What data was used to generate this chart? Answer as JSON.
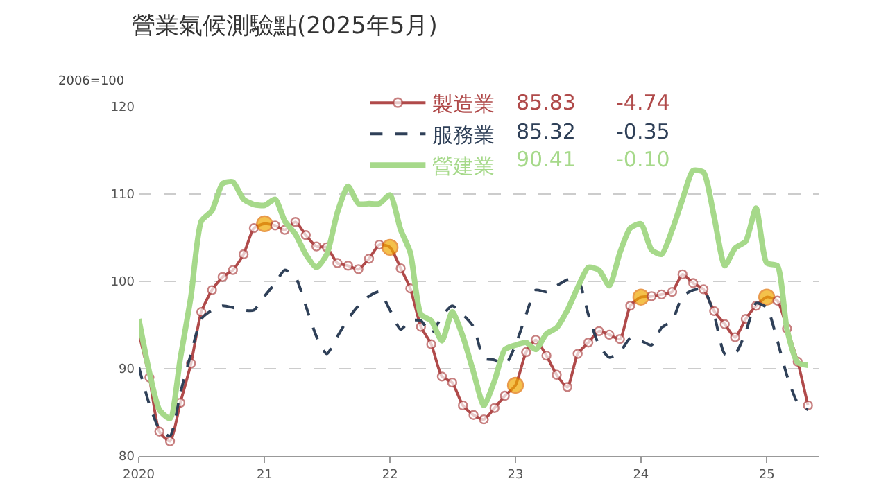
{
  "chart_data": {
    "type": "line",
    "title": "營業氣候測驗點(2025年5月)",
    "ylabel": "2006=100",
    "x": [
      "2020-01",
      "2020-02",
      "2020-03",
      "2020-04",
      "2020-05",
      "2020-06",
      "2020-07",
      "2020-08",
      "2020-09",
      "2020-10",
      "2020-11",
      "2020-12",
      "2021-01",
      "2021-02",
      "2021-03",
      "2021-04",
      "2021-05",
      "2021-06",
      "2021-07",
      "2021-08",
      "2021-09",
      "2021-10",
      "2021-11",
      "2021-12",
      "2022-01",
      "2022-02",
      "2022-03",
      "2022-04",
      "2022-05",
      "2022-06",
      "2022-07",
      "2022-08",
      "2022-09",
      "2022-10",
      "2022-11",
      "2022-12",
      "2023-01",
      "2023-02",
      "2023-03",
      "2023-04",
      "2023-05",
      "2023-06",
      "2023-07",
      "2023-08",
      "2023-09",
      "2023-10",
      "2023-11",
      "2023-12",
      "2024-01",
      "2024-02",
      "2024-03",
      "2024-04",
      "2024-05",
      "2024-06",
      "2024-07",
      "2024-08",
      "2024-09",
      "2024-10",
      "2024-11",
      "2024-12",
      "2025-01",
      "2025-02",
      "2025-03",
      "2025-04",
      "2025-05"
    ],
    "series": [
      {
        "name": "製造業",
        "color": "#b04a4a",
        "marker": "circle",
        "line_style": "solid",
        "values": [
          94.1,
          89.0,
          82.8,
          81.7,
          86.1,
          90.6,
          96.5,
          99.0,
          100.5,
          101.3,
          103.1,
          106.1,
          106.6,
          106.4,
          105.9,
          106.8,
          105.3,
          104.0,
          103.9,
          102.1,
          101.8,
          101.4,
          102.6,
          104.2,
          103.9,
          101.5,
          99.2,
          94.8,
          92.8,
          89.1,
          88.4,
          85.8,
          84.7,
          84.2,
          85.5,
          86.9,
          88.1,
          91.9,
          93.3,
          91.5,
          89.3,
          87.9,
          91.7,
          93.0,
          94.3,
          93.9,
          93.4,
          97.2,
          98.2,
          98.3,
          98.5,
          98.8,
          100.8,
          99.8,
          99.1,
          96.6,
          95.1,
          93.6,
          95.7,
          97.2,
          98.2,
          97.8,
          94.6,
          90.8,
          85.8
        ],
        "colors": [
          null,
          null,
          null,
          null,
          null,
          null,
          null,
          null,
          null,
          null,
          null,
          null,
          "#f0a800",
          null,
          null,
          null,
          null,
          null,
          null,
          null,
          null,
          null,
          null,
          null,
          "#f0a800",
          null,
          null,
          null,
          null,
          null,
          null,
          null,
          null,
          null,
          null,
          null,
          "#f0a800",
          null,
          null,
          null,
          null,
          null,
          null,
          null,
          null,
          null,
          null,
          null,
          "#f0a800",
          null,
          null,
          null,
          null,
          null,
          null,
          null,
          null,
          null,
          null,
          null,
          "#f0a800",
          null,
          null,
          null,
          null
        ]
      },
      {
        "name": "服務業",
        "color": "#2f4058",
        "marker": "none",
        "line_style": "dashed",
        "values": [
          90.2,
          85.9,
          83.1,
          82.3,
          87.2,
          91.7,
          95.7,
          96.7,
          97.2,
          97.0,
          96.7,
          96.7,
          98.3,
          99.8,
          101.3,
          100.5,
          97.2,
          93.7,
          91.7,
          93.7,
          95.7,
          97.2,
          98.3,
          98.8,
          96.7,
          94.5,
          95.5,
          95.5,
          94.0,
          96.0,
          97.2,
          96.2,
          94.8,
          91.2,
          91.0,
          90.4,
          92.7,
          96.2,
          99.0,
          98.8,
          99.5,
          100.2,
          100.3,
          96.2,
          92.7,
          91.3,
          91.9,
          93.5,
          93.2,
          92.7,
          94.7,
          95.5,
          98.3,
          99.0,
          99.1,
          96.2,
          91.7,
          91.7,
          94.2,
          97.5,
          97.0,
          93.2,
          89.2,
          86.1,
          85.3
        ]
      },
      {
        "name": "營建業",
        "color": "#a6d98a",
        "marker": "none",
        "line_style": "solid",
        "values": [
          95.7,
          89.6,
          85.3,
          84.3,
          91.2,
          98.3,
          106.9,
          108.1,
          111.2,
          111.4,
          109.4,
          108.8,
          108.7,
          109.4,
          106.9,
          105.4,
          103.1,
          101.6,
          103.1,
          107.9,
          110.9,
          108.9,
          108.9,
          108.9,
          109.9,
          105.9,
          103.3,
          96.2,
          95.5,
          93.2,
          96.5,
          93.7,
          89.6,
          85.8,
          88.6,
          92.2,
          92.7,
          93.0,
          92.2,
          94.0,
          94.7,
          96.7,
          99.3,
          101.6,
          101.3,
          99.5,
          103.3,
          106.1,
          106.6,
          103.6,
          103.1,
          105.9,
          109.4,
          112.7,
          112.5,
          107.4,
          101.8,
          103.8,
          104.6,
          108.4,
          102.1,
          101.8,
          94.5,
          90.7,
          90.4
        ]
      }
    ],
    "annotations": [
      "85.83",
      "-4.74",
      "85.32",
      "-0.35",
      "90.41",
      "-0.10"
    ],
    "xlim": [
      "2020-01-01",
      "2025-06-01"
    ],
    "xticks": [
      {
        "value": "2020-01",
        "label": "2020"
      },
      {
        "value": "2021-01",
        "label": "21"
      },
      {
        "value": "2022-01",
        "label": "22"
      },
      {
        "value": "2023-01",
        "label": "23"
      },
      {
        "value": "2024-01",
        "label": "24"
      },
      {
        "value": "2025-01",
        "label": "25"
      }
    ],
    "ylim": [
      80,
      120
    ],
    "yticks": [
      80,
      90,
      100,
      110,
      120
    ],
    "grid": "y",
    "legend": "top"
  }
}
